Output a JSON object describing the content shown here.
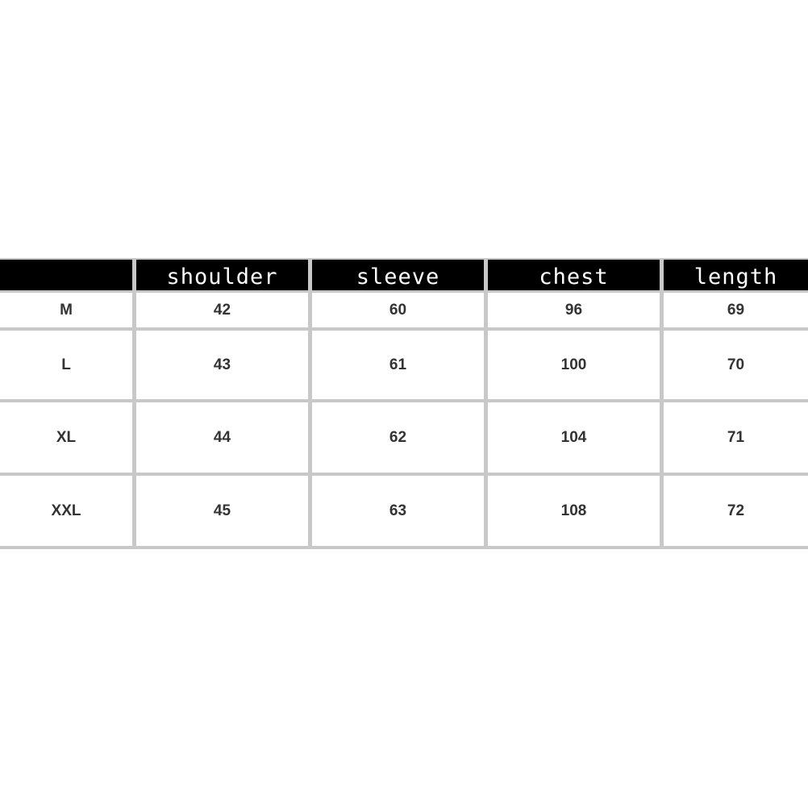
{
  "table": {
    "headers": [
      "",
      "shoulder",
      "sleeve",
      "chest",
      "length"
    ],
    "rows": [
      [
        "M",
        "42",
        "60",
        "96",
        "69"
      ],
      [
        "L",
        "43",
        "61",
        "100",
        "70"
      ],
      [
        "XL",
        "44",
        "62",
        "104",
        "71"
      ],
      [
        "XXL",
        "45",
        "63",
        "108",
        "72"
      ]
    ]
  },
  "colors": {
    "header_bg": "#000000",
    "header_text": "#ffffff",
    "border": "#c8c8c8",
    "body_text": "#333333"
  }
}
